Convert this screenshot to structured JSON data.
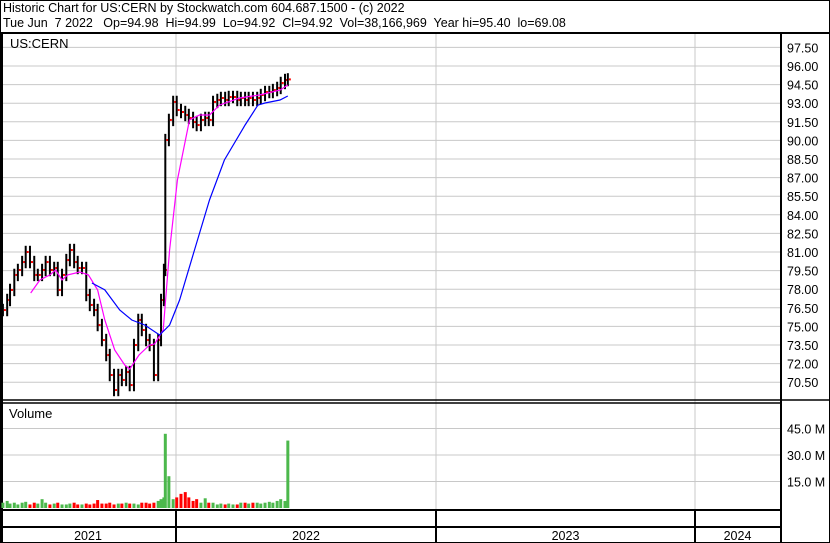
{
  "header": {
    "line1": "Historic Chart for US:CERN by Stockwatch.com 604.687.1500 - (c) 2022",
    "line2": "Tue Jun  7 2022   Op=94.98  Hi=94.99  Lo=94.92  Cl=94.92  Vol=38,166,969  Year hi=95.40  lo=69.08"
  },
  "chart_data": [
    {
      "type": "line",
      "title": "US:CERN",
      "ylim": [
        69,
        98.5
      ],
      "yticks": [
        "97.50",
        "96.00",
        "94.50",
        "93.00",
        "91.50",
        "90.00",
        "88.50",
        "87.00",
        "85.50",
        "84.00",
        "82.50",
        "81.00",
        "79.50",
        "78.00",
        "76.50",
        "75.00",
        "73.50",
        "72.00",
        "70.50"
      ],
      "grid": true,
      "colors": {
        "price": "#000000",
        "close_tick": "#ff0000",
        "ma_short": "#ff00ff",
        "ma_long": "#0000ff"
      },
      "dates": [
        "2021-05-03",
        "2021-05-09",
        "2021-05-13",
        "2021-05-19",
        "2021-05-24",
        "2021-05-30",
        "2021-06-04",
        "2021-06-10",
        "2021-06-16",
        "2021-06-21",
        "2021-06-27",
        "2021-07-02",
        "2021-07-08",
        "2021-07-14",
        "2021-07-19",
        "2021-07-25",
        "2021-07-31",
        "2021-08-05",
        "2021-08-11",
        "2021-08-16",
        "2021-08-22",
        "2021-08-28",
        "2021-09-02",
        "2021-09-08",
        "2021-09-13",
        "2021-09-19",
        "2021-09-25",
        "2021-09-30",
        "2021-10-06",
        "2021-10-12",
        "2021-10-17",
        "2021-10-23",
        "2021-10-28",
        "2021-11-03",
        "2021-11-09",
        "2021-11-14",
        "2021-11-20",
        "2021-11-25",
        "2021-12-01",
        "2021-12-07",
        "2021-12-11",
        "2021-12-15",
        "2021-12-17",
        "2021-12-22",
        "2021-12-28",
        "2022-01-02",
        "2022-01-08",
        "2022-01-14",
        "2022-01-19",
        "2022-01-25",
        "2022-01-30",
        "2022-02-05",
        "2022-02-11",
        "2022-02-16",
        "2022-02-22",
        "2022-02-28",
        "2022-03-05",
        "2022-03-11",
        "2022-03-16",
        "2022-03-22",
        "2022-03-28",
        "2022-04-02",
        "2022-04-08",
        "2022-04-13",
        "2022-04-19",
        "2022-04-25",
        "2022-04-30",
        "2022-05-06",
        "2022-05-12",
        "2022-05-17",
        "2022-05-23",
        "2022-05-28",
        "2022-06-03",
        "2022-06-07"
      ],
      "close": [
        76.32,
        77.13,
        77.94,
        79.15,
        79.55,
        80.19,
        81.0,
        80.19,
        79.15,
        79.15,
        79.55,
        80.19,
        79.55,
        79.71,
        77.94,
        79.15,
        80.35,
        81.16,
        80.19,
        79.71,
        79.71,
        77.53,
        76.73,
        76.32,
        75.11,
        73.9,
        72.69,
        71.08,
        69.87,
        71.08,
        70.68,
        71.32,
        70.27,
        73.5,
        75.52,
        74.71,
        73.9,
        73.5,
        71.08,
        73.9,
        77.13,
        79.55,
        90.03,
        91.65,
        93.1,
        92.45,
        92.29,
        92.05,
        91.81,
        91.48,
        91.24,
        91.65,
        91.81,
        91.65,
        93.1,
        93.26,
        93.42,
        93.26,
        93.5,
        93.5,
        93.26,
        93.42,
        93.26,
        93.42,
        93.26,
        93.42,
        93.66,
        93.9,
        93.9,
        94.06,
        94.23,
        94.63,
        94.87,
        94.92
      ],
      "series": [
        {
          "values_of": "moving-average-short",
          "points": [
            [
              "2021-06-11",
              77.69
            ],
            [
              "2021-06-24",
              78.74
            ],
            [
              "2021-07-08",
              79.15
            ],
            [
              "2021-07-16",
              79.55
            ],
            [
              "2021-07-25",
              78.74
            ],
            [
              "2021-08-02",
              79.15
            ],
            [
              "2021-08-19",
              79.39
            ],
            [
              "2021-08-31",
              79.15
            ],
            [
              "2021-09-13",
              77.94
            ],
            [
              "2021-09-23",
              75.52
            ],
            [
              "2021-10-07",
              73.1
            ],
            [
              "2021-10-21",
              71.89
            ],
            [
              "2021-10-28",
              71.56
            ],
            [
              "2021-11-10",
              72.69
            ],
            [
              "2021-11-25",
              73.5
            ],
            [
              "2021-12-02",
              73.58
            ],
            [
              "2021-12-14",
              74.71
            ],
            [
              "2021-12-23",
              81.16
            ],
            [
              "2022-01-03",
              86.81
            ],
            [
              "2022-01-20",
              91.65
            ],
            [
              "2022-02-03",
              92.05
            ],
            [
              "2022-02-17",
              92.05
            ],
            [
              "2022-03-03",
              92.85
            ],
            [
              "2022-03-31",
              93.42
            ],
            [
              "2022-04-28",
              93.66
            ],
            [
              "2022-05-27",
              94.06
            ],
            [
              "2022-06-07",
              94.47
            ]
          ]
        },
        {
          "values_of": "moving-average-long",
          "points": [
            [
              "2021-09-05",
              78.5
            ],
            [
              "2021-09-23",
              77.94
            ],
            [
              "2021-10-14",
              76.32
            ],
            [
              "2021-10-31",
              75.52
            ],
            [
              "2021-11-18",
              75.11
            ],
            [
              "2021-12-09",
              74.31
            ],
            [
              "2021-12-23",
              75.11
            ],
            [
              "2022-01-06",
              77.13
            ],
            [
              "2022-01-27",
              81.16
            ],
            [
              "2022-02-17",
              85.19
            ],
            [
              "2022-03-10",
              88.42
            ],
            [
              "2022-04-08",
              91.24
            ],
            [
              "2022-04-26",
              92.85
            ],
            [
              "2022-05-06",
              93.02
            ],
            [
              "2022-05-27",
              93.26
            ],
            [
              "2022-06-07",
              93.58
            ]
          ]
        }
      ]
    },
    {
      "type": "bar",
      "title": "Volume",
      "unit": "M",
      "ylim": [
        0,
        55
      ],
      "yticks": [
        "45.0 M",
        "30.0 M",
        "15.0 M"
      ],
      "colors": {
        "up": "#4cb84c",
        "down": "#ff0000"
      },
      "values": [
        3,
        4,
        2.5,
        3,
        2,
        3,
        3.5,
        2,
        3,
        2.5,
        5,
        3,
        2,
        2.5,
        3,
        2,
        2,
        2.5,
        3,
        2,
        2,
        2.5,
        2,
        2.5,
        4.5,
        2.5,
        2.5,
        3,
        2,
        2.5,
        2.5,
        3,
        2.5,
        2.5,
        2,
        3,
        3,
        2.5,
        3,
        4,
        5,
        6,
        42,
        18,
        5,
        6,
        8,
        9,
        6,
        4,
        5,
        3,
        5.5,
        3,
        3,
        2,
        2.5,
        2,
        2.5,
        2,
        2,
        3,
        3,
        2.5,
        3,
        3,
        2.5,
        3,
        3.5,
        3,
        4,
        5,
        4,
        38.17
      ]
    }
  ],
  "x_axis": {
    "years": [
      "2021",
      "2022",
      "2023",
      "2024"
    ]
  }
}
